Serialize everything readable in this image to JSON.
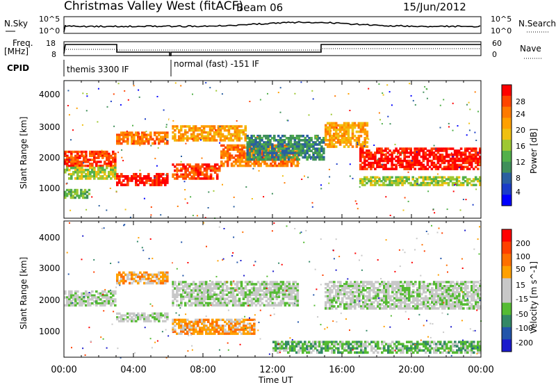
{
  "header": {
    "title": "Christmas Valley West (fitACF)",
    "beam": "Beam 06",
    "date": "15/Jun/2012"
  },
  "top_panels": {
    "nsky_label": "N.Sky",
    "nsky_ticks": [
      "10^5",
      "10^0"
    ],
    "nsearch_label": "N.Search",
    "nsearch_ticks": [
      "10^5",
      "10^0"
    ],
    "freq_label_1": "Freq.",
    "freq_label_2": "[MHz]",
    "freq_ticks": [
      "18",
      "8"
    ],
    "nave_label": "Nave",
    "nave_ticks": [
      "60",
      "0"
    ],
    "cpid_label": "CPID",
    "cpid_mode_1": "themis 3300 IF",
    "cpid_mode_2": "normal (fast) -151 IF"
  },
  "colors": {
    "power_scale": [
      "#0000ff",
      "#1a3cc8",
      "#2a5fa0",
      "#3f8f5a",
      "#52b04a",
      "#9ec832",
      "#f0c010",
      "#ffa000",
      "#ff7a00",
      "#ff4400",
      "#ff0000"
    ],
    "velocity_scale": [
      "#1a1acc",
      "#2255aa",
      "#338866",
      "#55bb33",
      "#c8c8c8",
      "#c8c8c8",
      "#ffa000",
      "#ff7000",
      "#ff4000",
      "#ff0000"
    ]
  },
  "chart_data": [
    {
      "type": "heatmap",
      "panel": "power",
      "ylabel": "Slant Range [km]",
      "yticks": [
        "4000",
        "3000",
        "2000",
        "1000"
      ],
      "ylim": [
        180,
        4500
      ],
      "colorbar_label": "Power [dB]",
      "colorbar_ticks": [
        "28",
        "24",
        "20",
        "16",
        "12",
        "8",
        "4"
      ],
      "bands": [
        {
          "t": [
            0.0,
            3.0
          ],
          "range": [
            1800,
            2300
          ],
          "level": 9
        },
        {
          "t": [
            0.0,
            3.0
          ],
          "range": [
            1400,
            1800
          ],
          "level": 5
        },
        {
          "t": [
            0.0,
            1.5
          ],
          "range": [
            800,
            1100
          ],
          "level": 4
        },
        {
          "t": [
            3.0,
            6.0
          ],
          "range": [
            1200,
            1600
          ],
          "level": 10
        },
        {
          "t": [
            3.0,
            6.0
          ],
          "range": [
            2500,
            2900
          ],
          "level": 8
        },
        {
          "t": [
            6.2,
            9.0
          ],
          "range": [
            1400,
            1900
          ],
          "level": 9
        },
        {
          "t": [
            6.2,
            10.5
          ],
          "range": [
            2600,
            3100
          ],
          "level": 7
        },
        {
          "t": [
            9.0,
            13.5
          ],
          "range": [
            1800,
            2500
          ],
          "level": 8
        },
        {
          "t": [
            10.5,
            15.0
          ],
          "range": [
            2000,
            2800
          ],
          "level": 3
        },
        {
          "t": [
            15.0,
            17.5
          ],
          "range": [
            2400,
            3200
          ],
          "level": 7
        },
        {
          "t": [
            17.0,
            24.0
          ],
          "range": [
            1700,
            2400
          ],
          "level": 10
        },
        {
          "t": [
            17.0,
            24.0
          ],
          "range": [
            1200,
            1500
          ],
          "level": 5
        }
      ]
    },
    {
      "type": "heatmap",
      "panel": "velocity",
      "ylabel": "Slant Range [km]",
      "yticks": [
        "4000",
        "3000",
        "2000",
        "1000"
      ],
      "ylim": [
        180,
        4500
      ],
      "colorbar_label": "Velocity [m s^-1]",
      "colorbar_ticks": [
        "200",
        "100",
        "50",
        "15",
        "-15",
        "-50",
        "-100",
        "-200"
      ],
      "bands": [
        {
          "t": [
            0.0,
            3.0
          ],
          "range": [
            1800,
            2300
          ],
          "level": 4
        },
        {
          "t": [
            3.0,
            6.0
          ],
          "range": [
            2500,
            2900
          ],
          "level": 6
        },
        {
          "t": [
            3.0,
            6.0
          ],
          "range": [
            1300,
            1600
          ],
          "level": 4
        },
        {
          "t": [
            6.2,
            11.0
          ],
          "range": [
            900,
            1400
          ],
          "level": 6
        },
        {
          "t": [
            6.2,
            13.5
          ],
          "range": [
            1800,
            2600
          ],
          "level": 4
        },
        {
          "t": [
            15.0,
            24.0
          ],
          "range": [
            1700,
            2600
          ],
          "level": 4
        },
        {
          "t": [
            12.0,
            24.0
          ],
          "range": [
            300,
            700
          ],
          "level": 3
        }
      ]
    }
  ],
  "xaxis": {
    "label": "Time UT",
    "ticks": [
      "00:00",
      "04:00",
      "08:00",
      "12:00",
      "16:00",
      "20:00",
      "00:00"
    ],
    "range": [
      0,
      24
    ]
  }
}
